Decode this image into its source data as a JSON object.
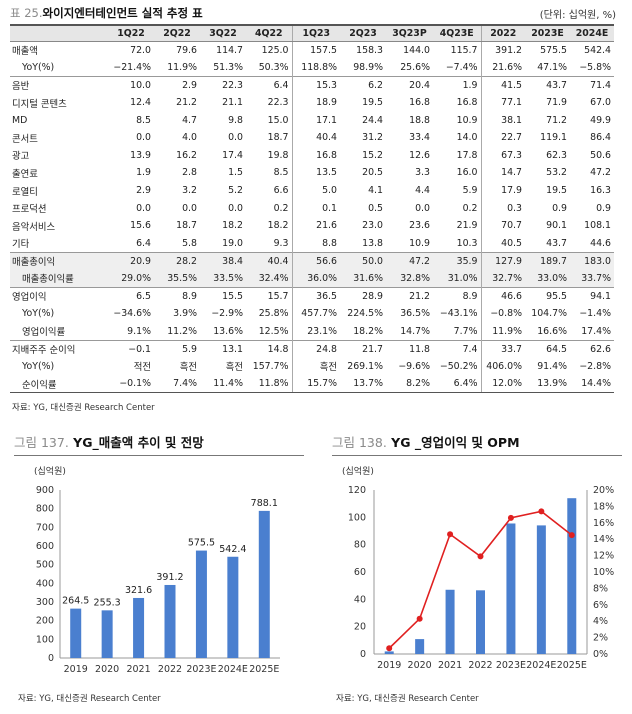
{
  "table": {
    "title_prefix": "표 25.",
    "title": "와이지엔터테인먼트 실적 추정 표",
    "unit": "(단위: 십억원, %)",
    "columns": [
      "",
      "1Q22",
      "2Q22",
      "3Q22",
      "4Q22",
      "1Q23",
      "2Q23",
      "3Q23P",
      "4Q23E",
      "2022",
      "2023E",
      "2024E"
    ],
    "rows": [
      {
        "label": "매출액",
        "cells": [
          "72.0",
          "79.6",
          "114.7",
          "125.0",
          "157.5",
          "158.3",
          "144.0",
          "115.7",
          "391.2",
          "575.5",
          "542.4"
        ]
      },
      {
        "label": "YoY(%)",
        "cells": [
          "−21.4%",
          "11.9%",
          "51.3%",
          "50.3%",
          "118.8%",
          "98.9%",
          "25.6%",
          "−7.4%",
          "21.6%",
          "47.1%",
          "−5.8%"
        ]
      },
      {
        "label": "음반",
        "cells": [
          "10.0",
          "2.9",
          "22.3",
          "6.4",
          "15.3",
          "6.2",
          "20.4",
          "1.9",
          "41.5",
          "43.7",
          "71.4"
        ]
      },
      {
        "label": "디지털 콘텐츠",
        "cells": [
          "12.4",
          "21.2",
          "21.1",
          "22.3",
          "18.9",
          "19.5",
          "16.8",
          "16.8",
          "77.1",
          "71.9",
          "67.0"
        ]
      },
      {
        "label": "MD",
        "cells": [
          "8.5",
          "4.7",
          "9.8",
          "15.0",
          "17.1",
          "24.4",
          "18.8",
          "10.9",
          "38.1",
          "71.2",
          "49.9"
        ]
      },
      {
        "label": "콘서트",
        "cells": [
          "0.0",
          "4.0",
          "0.0",
          "18.7",
          "40.4",
          "31.2",
          "33.4",
          "14.0",
          "22.7",
          "119.1",
          "86.4"
        ]
      },
      {
        "label": "광고",
        "cells": [
          "13.9",
          "16.2",
          "17.4",
          "19.8",
          "16.8",
          "15.2",
          "12.6",
          "17.8",
          "67.3",
          "62.3",
          "50.6"
        ]
      },
      {
        "label": "출연료",
        "cells": [
          "1.9",
          "2.8",
          "1.5",
          "8.5",
          "13.5",
          "20.5",
          "3.3",
          "16.0",
          "14.7",
          "53.2",
          "47.2"
        ]
      },
      {
        "label": "로열티",
        "cells": [
          "2.9",
          "3.2",
          "5.2",
          "6.6",
          "5.0",
          "4.1",
          "4.4",
          "5.9",
          "17.9",
          "19.5",
          "16.3"
        ]
      },
      {
        "label": "프로덕션",
        "cells": [
          "0.0",
          "0.0",
          "0.0",
          "0.2",
          "0.1",
          "0.5",
          "0.0",
          "0.2",
          "0.3",
          "0.9",
          "0.9"
        ]
      },
      {
        "label": "음악서비스",
        "cells": [
          "15.6",
          "18.7",
          "18.2",
          "18.2",
          "21.6",
          "23.0",
          "23.6",
          "21.9",
          "70.7",
          "90.1",
          "108.1"
        ]
      },
      {
        "label": "기타",
        "cells": [
          "6.4",
          "5.8",
          "19.0",
          "9.3",
          "8.8",
          "13.8",
          "10.9",
          "10.3",
          "40.5",
          "43.7",
          "44.6"
        ]
      },
      {
        "label": "매출총이익",
        "cells": [
          "20.9",
          "28.2",
          "38.4",
          "40.4",
          "56.6",
          "50.0",
          "47.2",
          "35.9",
          "127.9",
          "189.7",
          "183.0"
        ]
      },
      {
        "label": "매출총이익률",
        "cells": [
          "29.0%",
          "35.5%",
          "33.5%",
          "32.4%",
          "36.0%",
          "31.6%",
          "32.8%",
          "31.0%",
          "32.7%",
          "33.0%",
          "33.7%"
        ]
      },
      {
        "label": "영업이익",
        "cells": [
          "6.5",
          "8.9",
          "15.5",
          "15.7",
          "36.5",
          "28.9",
          "21.2",
          "8.9",
          "46.6",
          "95.5",
          "94.1"
        ]
      },
      {
        "label": "YoY(%)",
        "cells": [
          "−34.6%",
          "3.9%",
          "−2.9%",
          "25.8%",
          "457.7%",
          "224.5%",
          "36.5%",
          "−43.1%",
          "−0.8%",
          "104.7%",
          "−1.4%"
        ]
      },
      {
        "label": "영업이익률",
        "cells": [
          "9.1%",
          "11.2%",
          "13.6%",
          "12.5%",
          "23.1%",
          "18.2%",
          "14.7%",
          "7.7%",
          "11.9%",
          "16.6%",
          "17.4%"
        ]
      },
      {
        "label": "지배주주 순이익",
        "cells": [
          "−0.1",
          "5.9",
          "13.1",
          "14.8",
          "24.8",
          "21.7",
          "11.8",
          "7.4",
          "33.7",
          "64.5",
          "62.6"
        ]
      },
      {
        "label": "YoY(%)",
        "cells": [
          "적전",
          "흑전",
          "흑전",
          "157.7%",
          "흑전",
          "269.1%",
          "−9.6%",
          "−50.2%",
          "406.0%",
          "91.4%",
          "−2.8%"
        ]
      },
      {
        "label": "순이익률",
        "cells": [
          "−0.1%",
          "7.4%",
          "11.4%",
          "11.8%",
          "15.7%",
          "13.7%",
          "8.2%",
          "6.4%",
          "12.0%",
          "13.9%",
          "14.4%"
        ]
      }
    ],
    "source": "자료: YG, 대신증권 Research Center"
  },
  "fig137": {
    "title_prefix": "그림 137.",
    "title": "YG_매출액 추이 및 전망",
    "source": "자료: YG, 대신증권 Research Center"
  },
  "fig138": {
    "title_prefix": "그림 138.",
    "title": "YG _영업이익 및 OPM",
    "source": "자료: YG, 대신증권 Research Center"
  },
  "colors": {
    "bar": "#4a7fcf",
    "line": "#e02020",
    "header_bg": "#e6e6e6"
  },
  "chart_data": [
    {
      "type": "bar",
      "title": "YG_매출액 추이 및 전망",
      "unit_label": "(십억원)",
      "categories": [
        "2019",
        "2020",
        "2021",
        "2022",
        "2023E",
        "2024E",
        "2025E"
      ],
      "values": [
        264.5,
        255.3,
        321.6,
        391.2,
        575.5,
        542.4,
        788.1
      ],
      "value_labels": [
        "264.5",
        "255.3",
        "321.6",
        "391.2",
        "575.5",
        "542.4",
        "788.1"
      ],
      "ylim": [
        0,
        900
      ],
      "yticks": [
        0,
        100,
        200,
        300,
        400,
        500,
        600,
        700,
        800,
        900
      ]
    },
    {
      "type": "bar+line",
      "title": "YG _영업이익 및 OPM",
      "unit_label": "(십억원)",
      "categories": [
        "2019",
        "2020",
        "2021",
        "2022",
        "2023E",
        "2024E",
        "2025E"
      ],
      "series": [
        {
          "name": "영업이익",
          "type": "bar",
          "axis": "left",
          "values": [
            1.9,
            10.9,
            47.0,
            46.6,
            95.5,
            94.1,
            114.0
          ]
        },
        {
          "name": "OPM",
          "type": "line",
          "axis": "right",
          "values": [
            0.7,
            4.3,
            14.6,
            11.9,
            16.6,
            17.4,
            14.5
          ]
        }
      ],
      "ylim": [
        0,
        120
      ],
      "yticks": [
        0,
        20,
        40,
        60,
        80,
        100,
        120
      ],
      "y2lim": [
        0,
        20
      ],
      "y2ticks": [
        "0%",
        "2%",
        "4%",
        "6%",
        "8%",
        "10%",
        "12%",
        "14%",
        "16%",
        "18%",
        "20%"
      ]
    }
  ]
}
